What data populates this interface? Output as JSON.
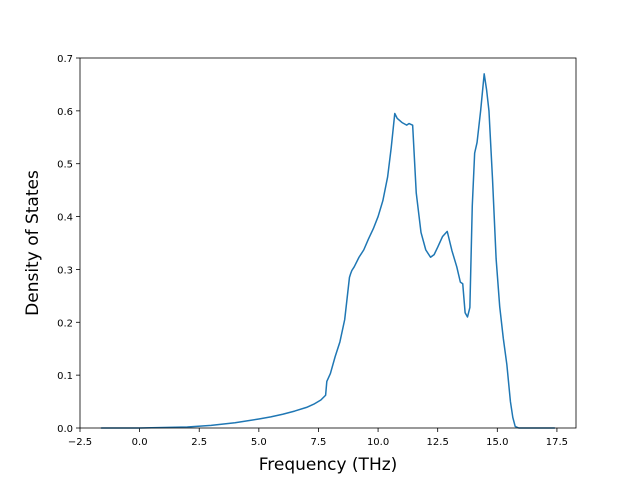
{
  "chart_data": {
    "type": "line",
    "title": "",
    "xlabel": "Frequency (THz)",
    "ylabel": "Density of States",
    "xlim": [
      -2.5,
      18.3
    ],
    "ylim": [
      0.0,
      0.7
    ],
    "xticks": [
      -2.5,
      0.0,
      2.5,
      5.0,
      7.5,
      10.0,
      12.5,
      15.0,
      17.5
    ],
    "xtick_labels": [
      "−2.5",
      "0.0",
      "2.5",
      "5.0",
      "7.5",
      "10.0",
      "12.5",
      "15.0",
      "17.5"
    ],
    "yticks": [
      0.0,
      0.1,
      0.2,
      0.3,
      0.4,
      0.5,
      0.6,
      0.7
    ],
    "ytick_labels": [
      "0.0",
      "0.1",
      "0.2",
      "0.3",
      "0.4",
      "0.5",
      "0.6",
      "0.7"
    ],
    "grid": false,
    "legend": "none",
    "series": [
      {
        "color": "#1f77b4",
        "x": [
          -1.6,
          -1.0,
          0.0,
          1.0,
          2.0,
          3.0,
          4.0,
          5.0,
          5.5,
          6.0,
          6.5,
          7.0,
          7.3,
          7.6,
          7.8,
          7.85,
          8.0,
          8.2,
          8.4,
          8.6,
          8.7,
          8.8,
          8.85,
          8.9,
          9.0,
          9.2,
          9.4,
          9.6,
          9.8,
          10.0,
          10.2,
          10.4,
          10.55,
          10.7,
          10.8,
          11.0,
          11.2,
          11.3,
          11.45,
          11.6,
          11.8,
          12.0,
          12.2,
          12.35,
          12.5,
          12.7,
          12.9,
          13.1,
          13.3,
          13.45,
          13.55,
          13.65,
          13.75,
          13.85,
          13.95,
          14.05,
          14.15,
          14.3,
          14.45,
          14.55,
          14.65,
          14.8,
          14.95,
          15.1,
          15.25,
          15.4,
          15.55,
          15.65,
          15.75,
          15.9,
          16.3,
          17.0,
          17.4
        ],
        "y": [
          0.0,
          0.0,
          0.0,
          0.001,
          0.002,
          0.005,
          0.01,
          0.017,
          0.021,
          0.026,
          0.032,
          0.039,
          0.045,
          0.053,
          0.062,
          0.088,
          0.103,
          0.135,
          0.163,
          0.205,
          0.245,
          0.285,
          0.292,
          0.298,
          0.305,
          0.323,
          0.337,
          0.358,
          0.377,
          0.4,
          0.43,
          0.475,
          0.53,
          0.595,
          0.586,
          0.578,
          0.573,
          0.576,
          0.573,
          0.445,
          0.37,
          0.337,
          0.323,
          0.328,
          0.342,
          0.362,
          0.372,
          0.335,
          0.305,
          0.276,
          0.273,
          0.218,
          0.21,
          0.228,
          0.42,
          0.52,
          0.54,
          0.6,
          0.67,
          0.64,
          0.6,
          0.47,
          0.32,
          0.23,
          0.17,
          0.12,
          0.05,
          0.02,
          0.003,
          0.0,
          0.0,
          0.0,
          0.0
        ]
      }
    ]
  }
}
